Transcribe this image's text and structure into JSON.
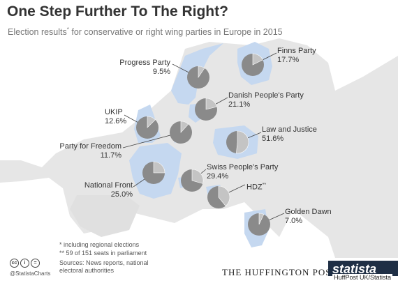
{
  "header": {
    "title": "One Step Further To The Right?",
    "subtitle": "Election results",
    "subtitle_mark": "*",
    "subtitle_rest": " for conservative or right wing parties in Europe in 2015"
  },
  "chart_data": {
    "type": "pie",
    "title": "One Step Further To The Right?",
    "subtitle": "Election results* for conservative or right wing parties in Europe in 2015",
    "series": [
      {
        "name": "Progress Party",
        "value": 9.5,
        "value_label": "9.5%"
      },
      {
        "name": "Finns Party",
        "value": 17.7,
        "value_label": "17.7%"
      },
      {
        "name": "Danish People's Party",
        "value": 21.1,
        "value_label": "21.1%"
      },
      {
        "name": "UKIP",
        "value": 12.6,
        "value_label": "12.6%"
      },
      {
        "name": "Party for Freedom",
        "value": 11.7,
        "value_label": "11.7%"
      },
      {
        "name": "Law and Justice",
        "value": 51.6,
        "value_label": "51.6%"
      },
      {
        "name": "Swiss People's Party",
        "value": 29.4,
        "value_label": "29.4%"
      },
      {
        "name": "National Front",
        "value": 25.0,
        "value_label": "25.0%"
      },
      {
        "name": "HDZ",
        "name_mark": "**",
        "value": 39.1,
        "value_label": ""
      },
      {
        "name": "Golden Dawn",
        "value": 7.0,
        "value_label": "7.0%"
      }
    ]
  },
  "colors": {
    "pie_base": "#8a8a8a",
    "pie_slice": "#c4c4c4",
    "map_land": "#e6e6e6",
    "map_highlight": "#c5d8f0",
    "text": "#333333"
  },
  "footnotes": {
    "note1": "* including regional elections",
    "note2": "** 59 of 151 seats in parliament",
    "sources_line1": "Sources: News reports, national",
    "sources_line2": "electoral authorities"
  },
  "branding": {
    "license_icons": [
      "cc",
      "i",
      "="
    ],
    "handle": "@StatistaCharts",
    "publisher": "THE HUFFINGTON POST",
    "statista": "statista",
    "credit": "HuffPost UK/Statista"
  }
}
